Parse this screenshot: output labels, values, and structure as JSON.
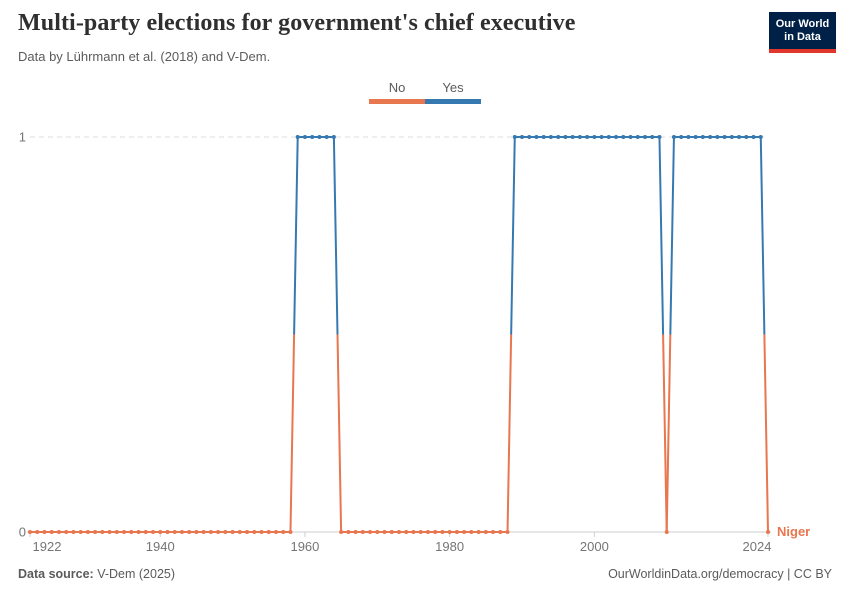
{
  "header": {
    "title": "Multi-party elections for government's chief executive",
    "subtitle": "Data by Lührmann et al. (2018) and V-Dem.",
    "logo": {
      "line1": "Our World",
      "line2": "in Data"
    }
  },
  "legend": {
    "position": "top-center",
    "items": [
      {
        "label": "No",
        "color": "#e8764f"
      },
      {
        "label": "Yes",
        "color": "#3679b1"
      }
    ]
  },
  "chart_data": {
    "type": "line",
    "entity": "Niger",
    "series_label": "Niger",
    "title": "Multi-party elections for government's chief executive",
    "xlabel": "",
    "ylabel": "",
    "xlim": [
      1922,
      2024
    ],
    "ylim": [
      0,
      1
    ],
    "x_ticks": [
      1922,
      1940,
      1960,
      1980,
      2000,
      2024
    ],
    "y_ticks": [
      0,
      1
    ],
    "grid": "dashed-line-at-1-only",
    "colors": {
      "no": "#e8764f",
      "yes": "#3679b1"
    },
    "segments": [
      {
        "start": 1922,
        "end": 1958,
        "value": 0
      },
      {
        "start": 1959,
        "end": 1964,
        "value": 1
      },
      {
        "start": 1965,
        "end": 1988,
        "value": 0
      },
      {
        "start": 1989,
        "end": 2009,
        "value": 1
      },
      {
        "start": 2010,
        "end": 2010,
        "value": 0
      },
      {
        "start": 2011,
        "end": 2023,
        "value": 1
      },
      {
        "start": 2024,
        "end": 2024,
        "value": 0
      }
    ]
  },
  "footer": {
    "source_label": "Data source:",
    "source_value": " V-Dem (2025)",
    "right": "OurWorldinData.org/democracy | CC BY"
  }
}
